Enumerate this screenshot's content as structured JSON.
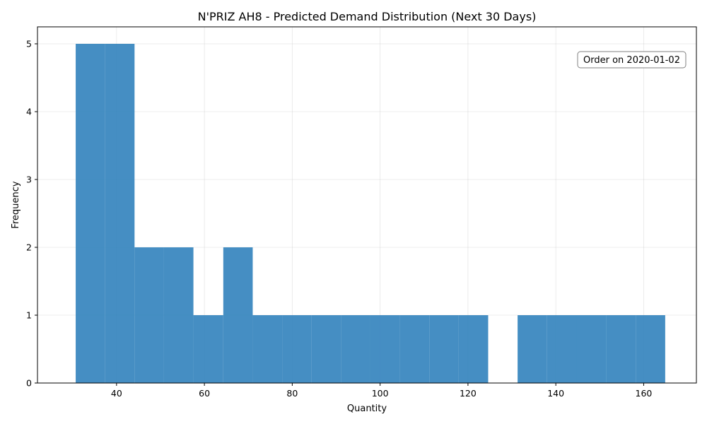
{
  "chart_data": {
    "type": "bar",
    "title": "N'PRIZ AH8 - Predicted Demand Distribution (Next 30 Days)",
    "xlabel": "Quantity",
    "ylabel": "Frequency",
    "xlim": [
      22,
      172
    ],
    "ylim": [
      0,
      5.25
    ],
    "xticks": [
      40,
      60,
      80,
      100,
      120,
      140,
      160
    ],
    "yticks": [
      0,
      1,
      2,
      3,
      4,
      5
    ],
    "grid": true,
    "bar_color": "#3182bd",
    "bins": [
      {
        "start": 30.7,
        "end": 37.4,
        "count": 5
      },
      {
        "start": 37.4,
        "end": 44.1,
        "count": 5
      },
      {
        "start": 44.1,
        "end": 50.8,
        "count": 2
      },
      {
        "start": 50.8,
        "end": 57.5,
        "count": 2
      },
      {
        "start": 57.5,
        "end": 64.3,
        "count": 1
      },
      {
        "start": 64.3,
        "end": 71.0,
        "count": 2
      },
      {
        "start": 71.0,
        "end": 77.7,
        "count": 1
      },
      {
        "start": 77.7,
        "end": 84.4,
        "count": 1
      },
      {
        "start": 84.4,
        "end": 91.1,
        "count": 1
      },
      {
        "start": 91.1,
        "end": 97.8,
        "count": 1
      },
      {
        "start": 97.8,
        "end": 104.5,
        "count": 1
      },
      {
        "start": 104.5,
        "end": 111.2,
        "count": 1
      },
      {
        "start": 111.2,
        "end": 117.9,
        "count": 1
      },
      {
        "start": 117.9,
        "end": 124.6,
        "count": 1
      },
      {
        "start": 124.6,
        "end": 131.3,
        "count": 0
      },
      {
        "start": 131.3,
        "end": 138.0,
        "count": 1
      },
      {
        "start": 138.0,
        "end": 144.8,
        "count": 1
      },
      {
        "start": 144.8,
        "end": 151.5,
        "count": 1
      },
      {
        "start": 151.5,
        "end": 158.2,
        "count": 1
      },
      {
        "start": 158.2,
        "end": 164.9,
        "count": 1
      }
    ],
    "annotation": "Order on 2020-01-02"
  }
}
